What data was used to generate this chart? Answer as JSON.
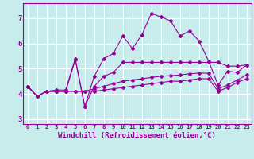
{
  "title": "",
  "xlabel": "Windchill (Refroidissement éolien,°C)",
  "xlim": [
    -0.5,
    23.5
  ],
  "ylim": [
    2.8,
    7.6
  ],
  "yticks": [
    3,
    4,
    5,
    6,
    7
  ],
  "xticks": [
    0,
    1,
    2,
    3,
    4,
    5,
    6,
    7,
    8,
    9,
    10,
    11,
    12,
    13,
    14,
    15,
    16,
    17,
    18,
    19,
    20,
    21,
    22,
    23
  ],
  "background_color": "#c8ecec",
  "grid_color": "#ffffff",
  "line_color": "#990099",
  "lines": [
    {
      "x": [
        0,
        1,
        2,
        3,
        4,
        5,
        6,
        7,
        8,
        9,
        10,
        11,
        12,
        13,
        14,
        15,
        16,
        17,
        18,
        19,
        20,
        21,
        22,
        23
      ],
      "y": [
        4.3,
        3.9,
        4.1,
        4.15,
        4.15,
        5.4,
        3.5,
        4.7,
        5.4,
        5.6,
        6.3,
        5.8,
        6.35,
        7.2,
        7.05,
        6.9,
        6.3,
        6.5,
        6.1,
        5.3,
        4.35,
        4.9,
        4.85,
        5.15
      ]
    },
    {
      "x": [
        0,
        1,
        2,
        3,
        4,
        5,
        6,
        7,
        8,
        9,
        10,
        11,
        12,
        13,
        14,
        15,
        16,
        17,
        18,
        19,
        20,
        21,
        22,
        23
      ],
      "y": [
        4.3,
        3.9,
        4.1,
        4.1,
        4.1,
        5.35,
        3.5,
        4.3,
        4.7,
        4.85,
        5.25,
        5.25,
        5.25,
        5.25,
        5.25,
        5.25,
        5.25,
        5.25,
        5.25,
        5.25,
        5.25,
        5.1,
        5.1,
        5.15
      ]
    },
    {
      "x": [
        0,
        1,
        2,
        3,
        4,
        5,
        6,
        7,
        8,
        9,
        10,
        11,
        12,
        13,
        14,
        15,
        16,
        17,
        18,
        19,
        20,
        21,
        22,
        23
      ],
      "y": [
        4.3,
        3.9,
        4.1,
        4.1,
        4.1,
        4.1,
        4.1,
        4.2,
        4.3,
        4.4,
        4.5,
        4.55,
        4.6,
        4.65,
        4.7,
        4.72,
        4.75,
        4.8,
        4.82,
        4.82,
        4.2,
        4.35,
        4.55,
        4.75
      ]
    },
    {
      "x": [
        0,
        1,
        2,
        3,
        4,
        5,
        6,
        7,
        8,
        9,
        10,
        11,
        12,
        13,
        14,
        15,
        16,
        17,
        18,
        19,
        20,
        21,
        22,
        23
      ],
      "y": [
        4.3,
        3.9,
        4.1,
        4.1,
        4.1,
        4.1,
        4.1,
        4.1,
        4.15,
        4.2,
        4.25,
        4.3,
        4.35,
        4.4,
        4.45,
        4.5,
        4.5,
        4.55,
        4.6,
        4.6,
        4.1,
        4.25,
        4.45,
        4.6
      ]
    }
  ],
  "font_size_label": 6.5,
  "font_size_tick_x": 5.2,
  "font_size_tick_y": 6.5,
  "marker": "D",
  "marker_size": 2.0,
  "linewidth": 0.8
}
